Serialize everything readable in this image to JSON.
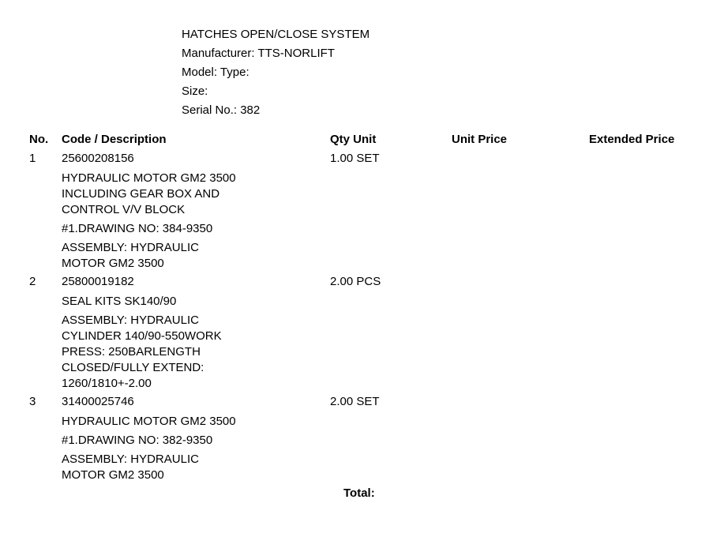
{
  "preamble": {
    "title": "HATCHES OPEN/CLOSE SYSTEM",
    "manufacturer_line": "Manufacturer: TTS-NORLIFT",
    "model_type_line": "Model:  Type:",
    "size_line": "Size:",
    "serial_line": "Serial No.: 382"
  },
  "headers": {
    "no": "No.",
    "code_desc": "Code / Description",
    "qty_unit": "Qty Unit",
    "unit_price": "Unit Price",
    "extended_price": "Extended Price"
  },
  "items": [
    {
      "no": "1",
      "code": "25600208156",
      "qty_unit": "1.00 SET",
      "desc_lines": [
        "HYDRAULIC MOTOR GM2 3500 INCLUDING GEAR BOX AND CONTROL V/V BLOCK",
        "#1.DRAWING NO: 384-9350",
        "ASSEMBLY: HYDRAULIC MOTOR GM2 3500"
      ],
      "unit_price": "",
      "extended_price": ""
    },
    {
      "no": "2",
      "code": "25800019182",
      "qty_unit": "2.00 PCS",
      "desc_lines": [
        "SEAL KITS SK140/90",
        "ASSEMBLY: HYDRAULIC CYLINDER 140/90-550WORK PRESS: 250BARLENGTH CLOSED/FULLY EXTEND: 1260/1810+-2.00"
      ],
      "unit_price": "",
      "extended_price": ""
    },
    {
      "no": "3",
      "code": "31400025746",
      "qty_unit": "2.00 SET",
      "desc_lines": [
        "HYDRAULIC MOTOR GM2 3500",
        "#1.DRAWING NO: 382-9350",
        "ASSEMBLY: HYDRAULIC MOTOR GM2 3500"
      ],
      "unit_price": "",
      "extended_price": ""
    }
  ],
  "total": {
    "label": "Total:",
    "value": ""
  }
}
